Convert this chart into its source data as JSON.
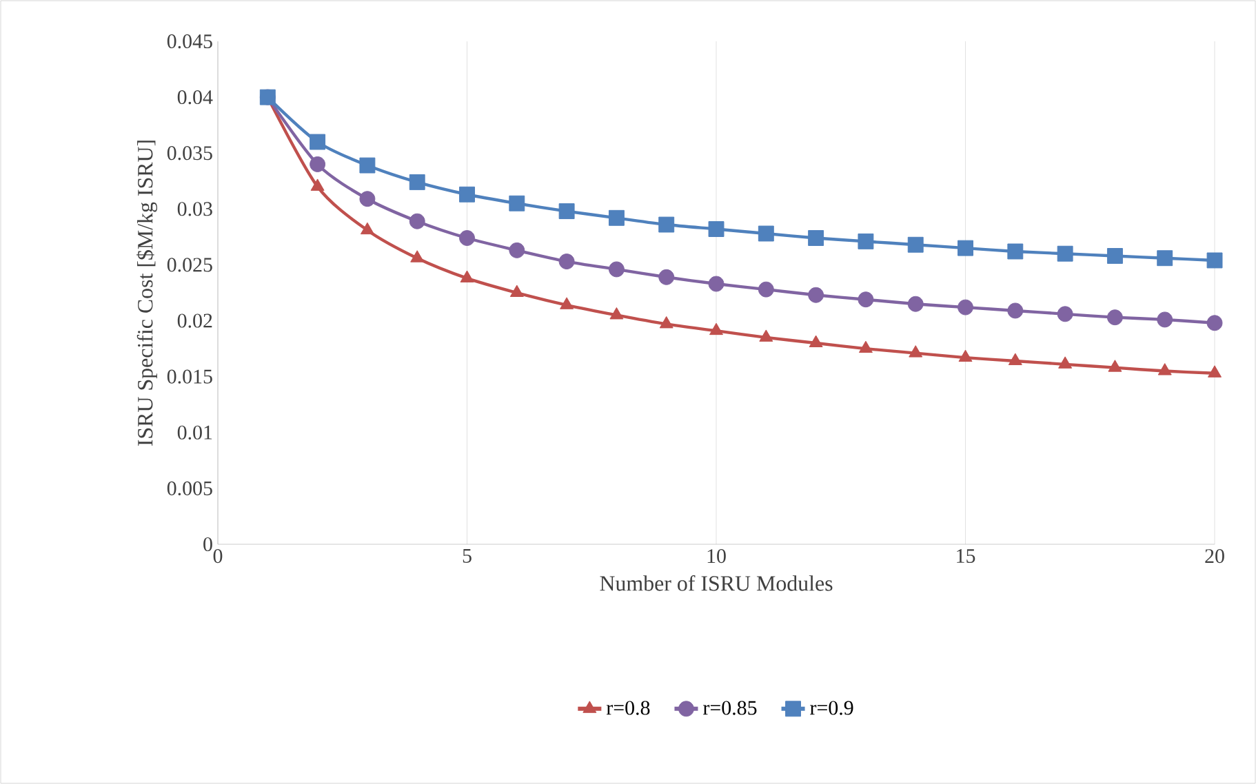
{
  "chart_data": {
    "type": "line",
    "xlabel": "Number of ISRU Modules",
    "ylabel": "ISRU Specific Cost [$M/kg ISRU]",
    "x": [
      1,
      2,
      3,
      4,
      5,
      6,
      7,
      8,
      9,
      10,
      11,
      12,
      13,
      14,
      15,
      16,
      17,
      18,
      19,
      20
    ],
    "series": [
      {
        "name": "r=0.8",
        "color": "#c0504d",
        "marker": "triangle",
        "values": [
          0.04,
          0.032,
          0.0281,
          0.0256,
          0.0238,
          0.0225,
          0.0214,
          0.0205,
          0.0197,
          0.0191,
          0.0185,
          0.018,
          0.0175,
          0.0171,
          0.0167,
          0.0164,
          0.0161,
          0.0158,
          0.0155,
          0.0153
        ]
      },
      {
        "name": "r=0.85",
        "color": "#8064a2",
        "marker": "circle",
        "values": [
          0.04,
          0.034,
          0.0309,
          0.0289,
          0.0274,
          0.0263,
          0.0253,
          0.0246,
          0.0239,
          0.0233,
          0.0228,
          0.0223,
          0.0219,
          0.0215,
          0.0212,
          0.0209,
          0.0206,
          0.0203,
          0.0201,
          0.0198
        ]
      },
      {
        "name": "r=0.9",
        "color": "#4f81bd",
        "marker": "square",
        "values": [
          0.04,
          0.036,
          0.0339,
          0.0324,
          0.0313,
          0.0305,
          0.0298,
          0.0292,
          0.0286,
          0.0282,
          0.0278,
          0.0274,
          0.0271,
          0.0268,
          0.0265,
          0.0262,
          0.026,
          0.0258,
          0.0256,
          0.0254
        ]
      }
    ],
    "xlim": [
      0,
      20
    ],
    "xticks": [
      0,
      5,
      10,
      15,
      20
    ],
    "ylim": [
      0,
      0.045
    ],
    "yticks": [
      0,
      0.005,
      0.01,
      0.015,
      0.02,
      0.025,
      0.03,
      0.035,
      0.04,
      0.045
    ],
    "grid": "x",
    "legend": "bottom"
  }
}
